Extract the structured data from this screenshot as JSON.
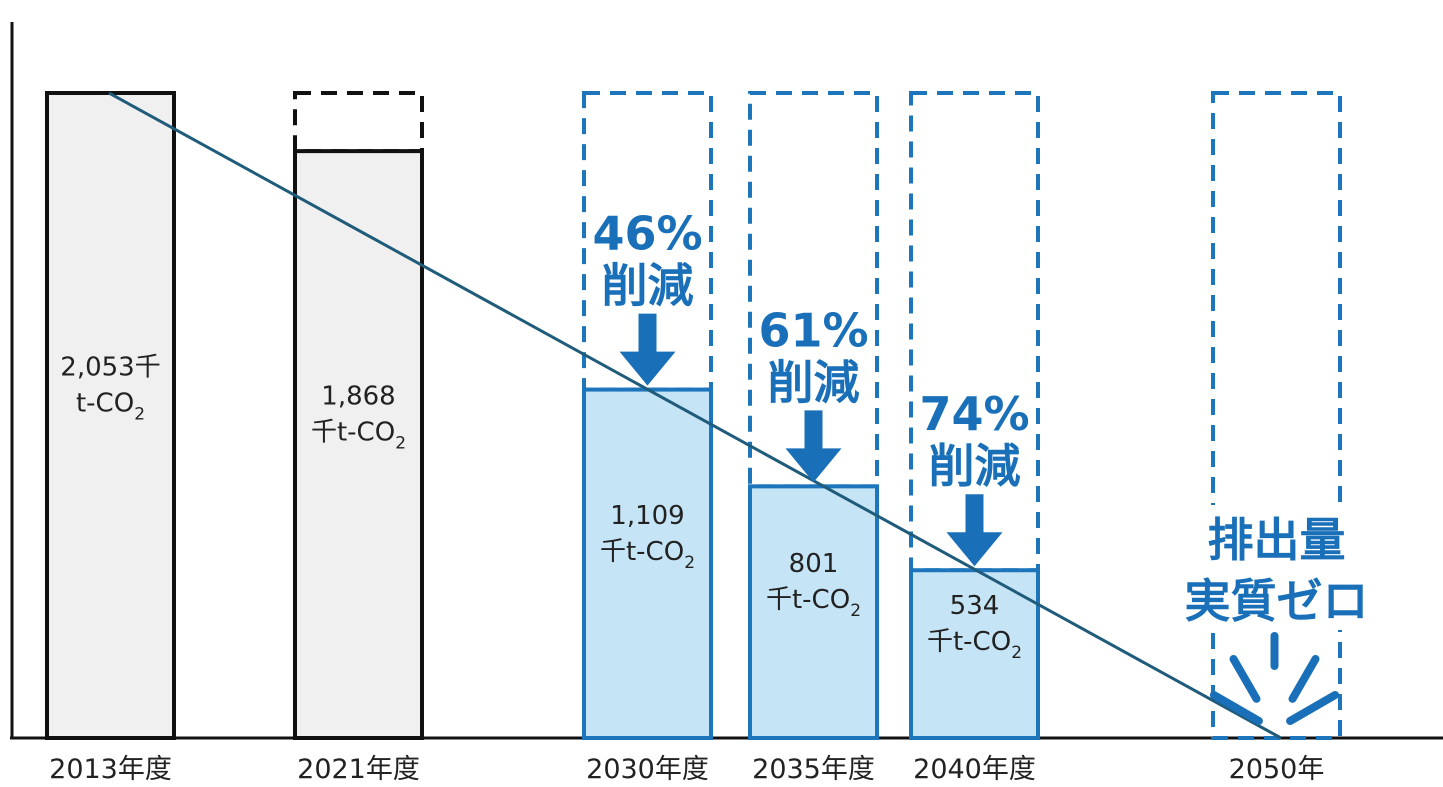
{
  "chart_data": {
    "type": "bar",
    "categories": [
      "2013年度",
      "2021年度",
      "2030年度",
      "2035年度",
      "2040年度",
      "2050年"
    ],
    "values": [
      2053,
      1868,
      1109,
      801,
      534,
      0
    ],
    "value_labels": [
      {
        "line1": "2,053千",
        "line2": "t-CO",
        "sub": "2"
      },
      {
        "line1": "1,868",
        "line2": "千t-CO",
        "sub": "2"
      },
      {
        "line1": "1,109",
        "line2": "千t-CO",
        "sub": "2"
      },
      {
        "line1": "801",
        "line2": "千t-CO",
        "sub": "2"
      },
      {
        "line1": "534",
        "line2": "千t-CO",
        "sub": "2"
      },
      {
        "line1": "",
        "line2": "",
        "sub": ""
      }
    ],
    "bar_style": [
      "actual",
      "actual",
      "target",
      "target",
      "target",
      "target"
    ],
    "reductions": [
      {
        "category_index": 2,
        "percent": "46%",
        "label": "削減"
      },
      {
        "category_index": 3,
        "percent": "61%",
        "label": "削減"
      },
      {
        "category_index": 4,
        "percent": "74%",
        "label": "削減"
      }
    ],
    "goal": {
      "category_index": 5,
      "line1": "排出量",
      "line2": "実質ゼロ"
    },
    "trend_line": {
      "from": {
        "category_index": 0,
        "value": 2053
      },
      "to": {
        "category_index": 5,
        "value": 0
      }
    },
    "baseline_value": 2053,
    "ylim": [
      0,
      2053
    ],
    "title": "",
    "xlabel": "",
    "ylabel": "",
    "grid": false,
    "colors": {
      "actual_fill": "#f0f0f0",
      "actual_stroke": "#111111",
      "target_fill": "#c5e4f5",
      "target_stroke": "#1d75bc",
      "accent": "#1a70b8",
      "trend": "#1f5b7a"
    }
  }
}
